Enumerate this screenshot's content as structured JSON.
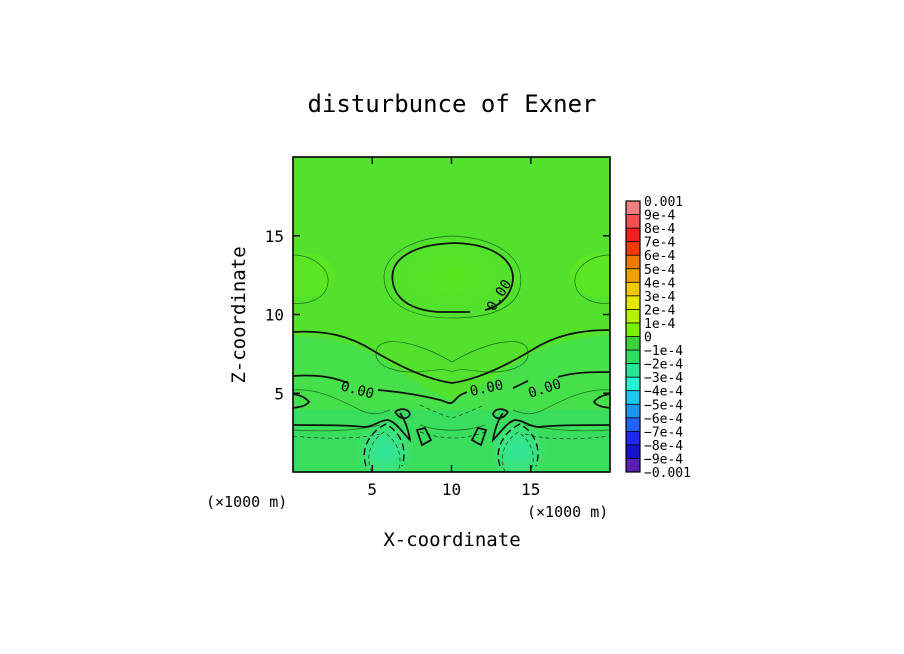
{
  "chart_data": {
    "type": "heatmap",
    "title": "disturbunce of Exner",
    "xlabel": "X-coordinate",
    "ylabel": "Z-coordinate",
    "x_unit": "(×1000 m)",
    "z_unit": "(×1000 m)",
    "xlim": [
      0,
      20
    ],
    "ylim": [
      0,
      20
    ],
    "x_ticks": [
      5,
      10,
      15
    ],
    "y_ticks": [
      5,
      10,
      15
    ],
    "contour_labels": [
      "0.00",
      "0.00",
      "0.00",
      "0.00"
    ],
    "colorbar": {
      "labels": [
        "0.001",
        "9e-4",
        "8e-4",
        "7e-4",
        "6e-4",
        "5e-4",
        "4e-4",
        "3e-4",
        "2e-4",
        "1e-4",
        "0",
        "−1e-4",
        "−2e-4",
        "−3e-4",
        "−4e-4",
        "−5e-4",
        "−6e-4",
        "−7e-4",
        "−8e-4",
        "−9e-4",
        "−0.001"
      ],
      "colors": [
        "#f08080",
        "#f05050",
        "#f02020",
        "#f03c00",
        "#f07800",
        "#f0a000",
        "#f0c800",
        "#e6e600",
        "#b4f000",
        "#78f000",
        "#3cd23c",
        "#30dc64",
        "#28e696",
        "#28f0d2",
        "#1ec8f0",
        "#1e96f0",
        "#1e64f0",
        "#1e28f0",
        "#1414c8",
        "#5a1eb4"
      ]
    },
    "field_range": [
      -0.0004,
      0.0002
    ]
  }
}
